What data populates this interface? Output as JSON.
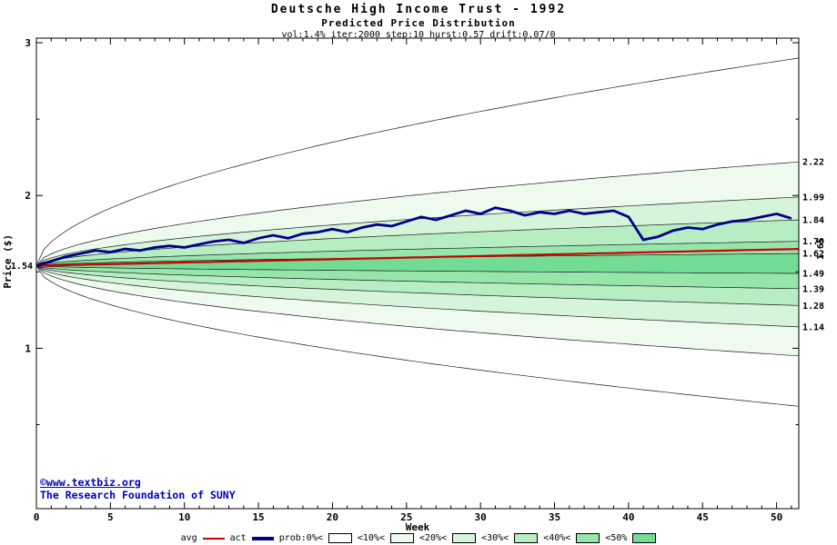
{
  "header": {
    "title": "Deutsche High Income Trust - 1992",
    "subtitle": "Predicted Price Distribution",
    "params": "vol:1.4% iter:2000 step:10 hurst:0.57 drift:0.07/0"
  },
  "axes": {
    "x_label": "Week",
    "y_label": "Price ($)",
    "x_range": [
      0,
      51.5
    ],
    "y_range": [
      -0.05,
      3.03
    ],
    "x_major_ticks": [
      0,
      5,
      10,
      15,
      20,
      25,
      30,
      35,
      40,
      45,
      50
    ],
    "x_minor_step": 1,
    "y_major_ticks": [
      1,
      2,
      3
    ],
    "y_minor_ticks": [
      0.5,
      1.5,
      2.5
    ],
    "start_price_label": "1.54"
  },
  "right_edge_labels": [
    "2.22",
    "1.99",
    "1.84",
    "1.70",
    "1.62",
    "1.49",
    "1.39",
    "1.28",
    "1.14"
  ],
  "avg_end_label": "1.65",
  "colors": {
    "avg_line": "#cc0000",
    "act_line": "#00008b",
    "boundary_line": "#1a1a1a",
    "axis": "#000000",
    "copyright": "#0000bb",
    "background": "#ffffff"
  },
  "chart_data": {
    "type": "area",
    "title": "Deutsche High Income Trust - 1992 / Predicted Price Distribution",
    "xlabel": "Week",
    "ylabel": "Price ($)",
    "x_range": [
      0,
      51.5
    ],
    "y_range": [
      -0.05,
      3.03
    ],
    "start_value": 1.54,
    "weeks": 51.5,
    "fan_exponent": 0.55,
    "avg_series": {
      "name": "avg",
      "start": 1.54,
      "end": 1.65
    },
    "band_boundaries_end": [
      2.9,
      2.22,
      1.99,
      1.84,
      1.7,
      1.62,
      1.49,
      1.39,
      1.28,
      1.14,
      0.95,
      0.62
    ],
    "band_levels": [
      "0%",
      "10%",
      "20%",
      "30%",
      "40%",
      "50%",
      "40%",
      "30%",
      "20%",
      "10%",
      "0%"
    ],
    "level_colors": {
      "0%": "#ffffff",
      "10%": "#edfaed",
      "20%": "#d5f4da",
      "30%": "#b7edc3",
      "40%": "#96e5ab",
      "50%": "#72dc95"
    },
    "act_series": {
      "name": "act",
      "x": [
        0,
        1,
        2,
        3,
        4,
        5,
        6,
        7,
        8,
        9,
        10,
        11,
        12,
        13,
        14,
        15,
        16,
        17,
        18,
        19,
        20,
        21,
        22,
        23,
        24,
        25,
        26,
        27,
        28,
        29,
        30,
        31,
        32,
        33,
        34,
        35,
        36,
        37,
        38,
        39,
        40,
        41,
        42,
        43,
        44,
        45,
        46,
        47,
        48,
        49,
        50,
        51
      ],
      "y": [
        1.54,
        1.57,
        1.6,
        1.62,
        1.64,
        1.63,
        1.65,
        1.64,
        1.66,
        1.67,
        1.66,
        1.68,
        1.7,
        1.71,
        1.69,
        1.72,
        1.74,
        1.72,
        1.75,
        1.76,
        1.78,
        1.76,
        1.79,
        1.81,
        1.8,
        1.83,
        1.86,
        1.84,
        1.87,
        1.9,
        1.88,
        1.92,
        1.9,
        1.87,
        1.89,
        1.88,
        1.9,
        1.88,
        1.89,
        1.9,
        1.86,
        1.71,
        1.73,
        1.77,
        1.79,
        1.78,
        1.81,
        1.83,
        1.84,
        1.86,
        1.88,
        1.85
      ]
    }
  },
  "legend": [
    {
      "key": "avg",
      "type": "line",
      "color": "#cc0000",
      "weight": 2,
      "label": "avg"
    },
    {
      "key": "act",
      "type": "line",
      "color": "#00008b",
      "weight": 4,
      "label": "act"
    },
    {
      "key": "prob0",
      "type": "box",
      "color": "#ffffff",
      "label": "prob:0%<"
    },
    {
      "key": "p10",
      "type": "box",
      "color": "#edfaed",
      "label": "<10%<"
    },
    {
      "key": "p20",
      "type": "box",
      "color": "#d5f4da",
      "label": "<20%<"
    },
    {
      "key": "p30",
      "type": "box",
      "color": "#b7edc3",
      "label": "<30%<"
    },
    {
      "key": "p40",
      "type": "box",
      "color": "#96e5ab",
      "label": "<40%<"
    },
    {
      "key": "p50",
      "type": "box",
      "color": "#72dc95",
      "label": "<50%"
    }
  ],
  "footer": {
    "line1": "©www.textbiz.org",
    "line2": "The Research Foundation of SUNY"
  }
}
